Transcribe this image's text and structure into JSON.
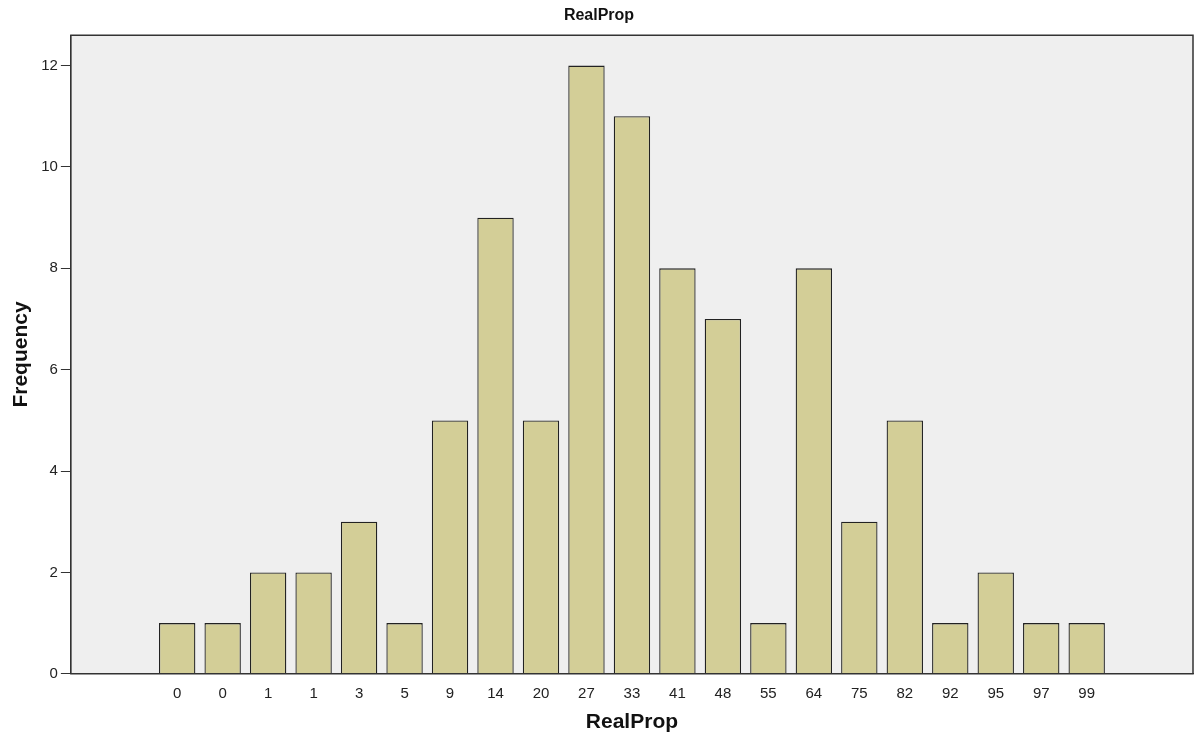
{
  "chart_data": {
    "type": "bar",
    "title": "RealProp",
    "xlabel": "RealProp",
    "ylabel": "Frequency",
    "categories": [
      "0",
      "0",
      "1",
      "1",
      "3",
      "5",
      "9",
      "14",
      "20",
      "27",
      "33",
      "41",
      "48",
      "55",
      "64",
      "75",
      "82",
      "92",
      "95",
      "97",
      "99"
    ],
    "values": [
      1,
      1,
      2,
      2,
      3,
      1,
      5,
      9,
      5,
      12,
      11,
      8,
      7,
      1,
      8,
      3,
      5,
      1,
      2,
      1,
      1
    ],
    "color": "#d3ce97",
    "ylim": [
      0,
      12.6
    ],
    "yticks": [
      0,
      2,
      4,
      6,
      8,
      10,
      12
    ],
    "grid": false,
    "legend": false
  }
}
